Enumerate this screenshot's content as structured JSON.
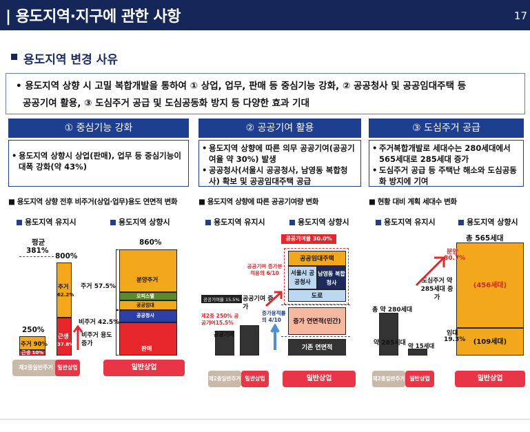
{
  "header": {
    "title": "| 용도지역·지구에 관한 사항",
    "page": "17"
  },
  "section": {
    "title": "용도지역 변경 사유"
  },
  "summary": {
    "line1": "• 용도지역 상향 시 고밀 복합개발을 통하여 ① 상업, 업무, 판매 등 중심기능 강화, ② 공공청사 및 공공임대주택 등",
    "line2": "공공기여 활용, ③ 도심주거 공급 및 도심공동화 방지 등 다양한 효과 기대"
  },
  "banners": [
    "① 중심기능 강화",
    "② 공공기여 활용",
    "③ 도심주거 공급"
  ],
  "boxes": [
    [
      "용도지역 상향시 상업(판매), 업무 등 중심기능이 대폭 강화(약 43%)"
    ],
    [
      "용도지역 상향에 따른 의무 공공기여(공공기여율 약 30%) 발생",
      "공공청사(서울시 공공청사, 남영동 복합청사) 확보 및 공공임대주택 공급"
    ],
    [
      "주거복합개발로 세대수는 280세대에서 565세대로 285세대 증가",
      "도심주거 공급 등 주택난 해소와 도심공동화 방지에 기여"
    ]
  ],
  "chart_titles": [
    "■ 용도지역 상향 전후 비주거(상업·업무)용도 연면적 변화",
    "■ 용도지역 상향에 따른 공공기여량 변화",
    "■ 현황 대비 계획 세대수 변화"
  ],
  "legend": {
    "keep": "용도지역 유지시",
    "up": "용도지역 상향시"
  },
  "c1": {
    "avg": "평균",
    "avg_val": "381%",
    "left_total": "250%",
    "left_res": "주거 90%",
    "left_nres": "근생 10%",
    "mid_total": "800%",
    "mid_res": "주거",
    "mid_res_pct": "62.2%",
    "mid_nres": "근생",
    "mid_nres_pct": "37.8%",
    "right_total": "860%",
    "res_label": "주거 57.5%",
    "nres_label": "비주거 42.5%",
    "incr": "비주거 용도 증가",
    "seg1": "분양주거",
    "seg2": "오피스텔",
    "seg3": "공공임대",
    "seg4": "공공청사",
    "seg5": "판매",
    "pill_keep": "제2종일반주거",
    "pill_keep2": "일반상업",
    "pill_up": "일반상업"
  },
  "c2": {
    "contrib_rate": "공공기여율 30.0%",
    "gov": "서울시 공공청사",
    "nam": "남영동 복합청사",
    "rental": "공공임대주택",
    "road": "도로",
    "increase": "증가 연면적(민간)",
    "base": "기존 연면적",
    "left_label": "공공기여",
    "left_small": "공공기여율 15.5%",
    "left_red": "제2종 250% 공공기여15.5%",
    "left_incr": "공공기여 증가",
    "red_note": "공공기여 증가분적용의 6/10",
    "blue_note": "증가용적률의 4/10",
    "pill_keep": "제2종일반주거",
    "pill_keep2": "일반상업",
    "pill_up": "일반상업"
  },
  "c3": {
    "total": "총 565세대",
    "left_total": "총 약 280세대",
    "left_small": "약 285세대",
    "left_small2": "약 15세대",
    "sale": "분양",
    "sale_pct": "80.7%",
    "rent": "임대",
    "rent_pct": "19.3%",
    "sale_units": "(456세대)",
    "rent_units": "(109세대)",
    "note": "도심주거 약 285세대 증가",
    "pill_keep": "제2종일반주거",
    "pill_keep2": "일반상업",
    "pill_up": "일반상업"
  }
}
